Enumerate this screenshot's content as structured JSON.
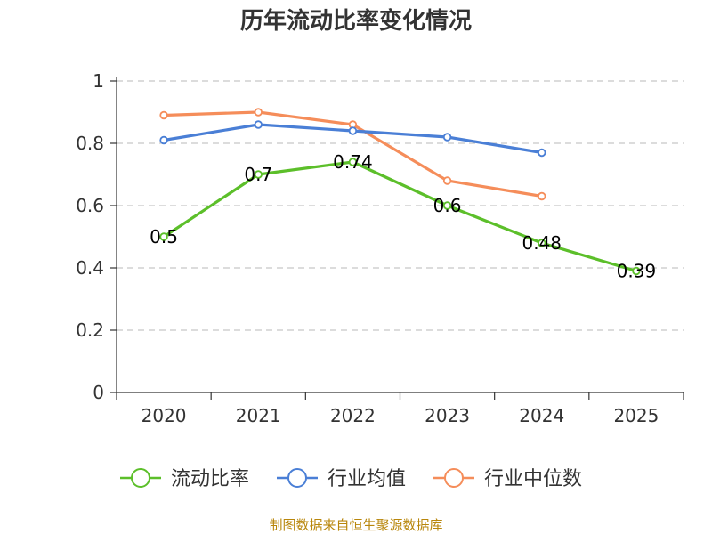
{
  "chart_data": {
    "type": "line",
    "title": "历年流动比率变化情况",
    "categories": [
      "2020",
      "2021",
      "2022",
      "2023",
      "2024",
      "2025"
    ],
    "ylim": [
      0,
      1
    ],
    "yticks": [
      "0",
      "0.2",
      "0.4",
      "0.6",
      "0.8",
      "1"
    ],
    "ytick_values": [
      0,
      0.2,
      0.4,
      0.6,
      0.8,
      1
    ],
    "grid": true,
    "legend_position": "bottom",
    "series": [
      {
        "name": "流动比率",
        "color": "#5cbf2a",
        "values": [
          0.5,
          0.7,
          0.74,
          0.6,
          0.48,
          0.39
        ],
        "labels": [
          "0.5",
          "0.7",
          "0.74",
          "0.6",
          "0.48",
          "0.39"
        ],
        "show_labels": true
      },
      {
        "name": "行业均值",
        "color": "#4a7fd6",
        "values": [
          0.81,
          0.86,
          0.84,
          0.82,
          0.77,
          null
        ],
        "show_labels": false
      },
      {
        "name": "行业中位数",
        "color": "#f58d5a",
        "values": [
          0.89,
          0.9,
          0.86,
          0.68,
          0.63,
          null
        ],
        "show_labels": false
      }
    ],
    "source": "制图数据来自恒生聚源数据库"
  }
}
